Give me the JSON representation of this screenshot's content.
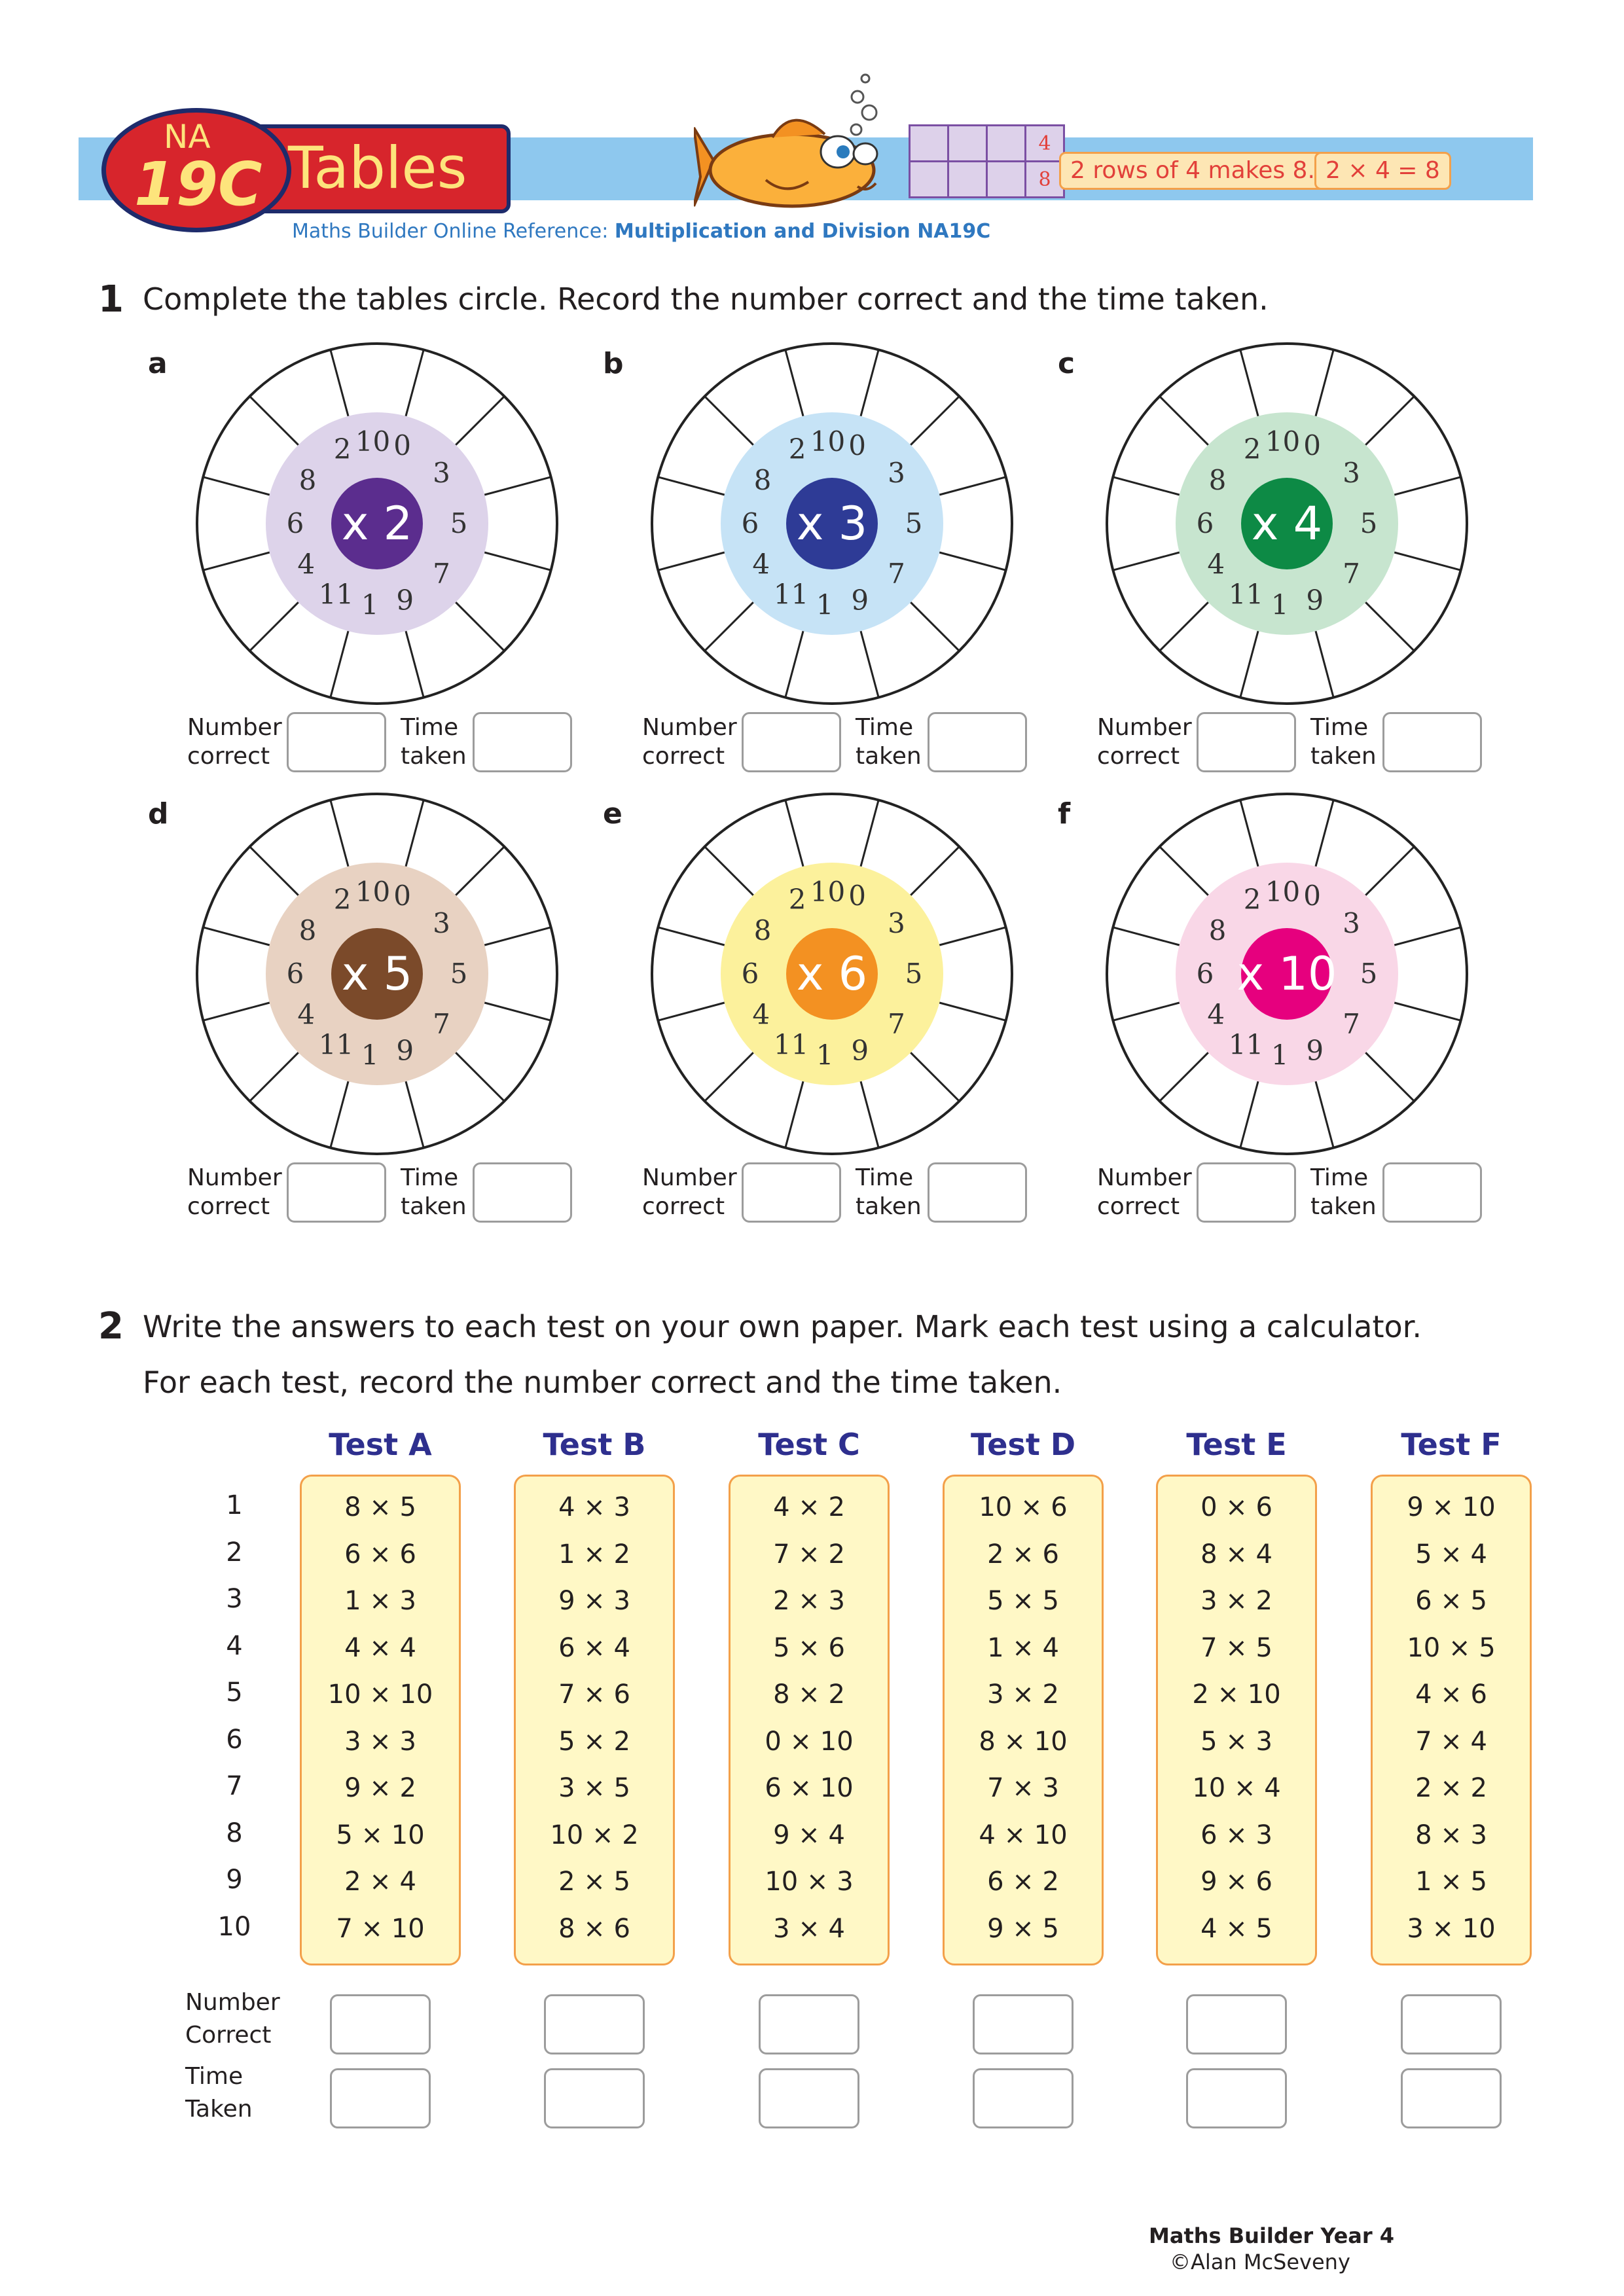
{
  "header": {
    "badge_na": "NA",
    "badge_code": "19C",
    "title": "Tables",
    "ref_prefix": "Maths Builder Online Reference: ",
    "ref_strong": "Multiplication and Division NA19C",
    "grid_digits": [
      "4",
      "8"
    ],
    "pill_rows": "2 rows of 4 makes 8.",
    "pill_eq": "2 × 4 =  8"
  },
  "q1": {
    "number": "1",
    "text": "Complete the tables circle. Record the number correct and the time taken.",
    "number_label": [
      "Number",
      "correct"
    ],
    "time_label": [
      "Time",
      "taken"
    ],
    "circle_digits": [
      "0",
      "3",
      "5",
      "7",
      "9",
      "1",
      "11",
      "4",
      "6",
      "8",
      "2",
      "10"
    ],
    "circles": [
      {
        "letter": "a",
        "label": "x 2",
        "ring": "#ddd3ea",
        "center": "#5b2d8e"
      },
      {
        "letter": "b",
        "label": "x 3",
        "ring": "#c6e3f6",
        "center": "#2e3b96"
      },
      {
        "letter": "c",
        "label": "x 4",
        "ring": "#c7e5cf",
        "center": "#0d8a45"
      },
      {
        "letter": "d",
        "label": "x 5",
        "ring": "#e8d2c2",
        "center": "#7b4a2a"
      },
      {
        "letter": "e",
        "label": "x 6",
        "ring": "#fcf19c",
        "center": "#f39122"
      },
      {
        "letter": "f",
        "label": "x 10",
        "ring": "#f9d7e7",
        "center": "#e6007e"
      }
    ]
  },
  "q2": {
    "number": "2",
    "text_line1": "Write the answers to each test on your own paper. Mark each test using a calculator.",
    "text_line2": "For each test, record the number correct and the time taken.",
    "row_numbers": [
      "1",
      "2",
      "3",
      "4",
      "5",
      "6",
      "7",
      "8",
      "9",
      "10"
    ],
    "tests": [
      {
        "name": "Test A",
        "items": [
          "8 × 5",
          "6 × 6",
          "1 × 3",
          "4 × 4",
          "10 × 10",
          "3 × 3",
          "9 × 2",
          "5 × 10",
          "2 × 4",
          "7 × 10"
        ]
      },
      {
        "name": "Test B",
        "items": [
          "4 × 3",
          "1 × 2",
          "9 × 3",
          "6 × 4",
          "7 × 6",
          "5 × 2",
          "3 × 5",
          "10 × 2",
          "2 × 5",
          "8 × 6"
        ]
      },
      {
        "name": "Test C",
        "items": [
          "4 × 2",
          "7 × 2",
          "2 × 3",
          "5 × 6",
          "8 × 2",
          "0 × 10",
          "6 × 10",
          "9 × 4",
          "10 × 3",
          "3 × 4"
        ]
      },
      {
        "name": "Test D",
        "items": [
          "10 × 6",
          "2 × 6",
          "5 × 5",
          "1 × 4",
          "3 × 2",
          "8 × 10",
          "7 × 3",
          "4 × 10",
          "6 × 2",
          "9 × 5"
        ]
      },
      {
        "name": "Test E",
        "items": [
          "0 × 6",
          "8 × 4",
          "3 × 2",
          "7 × 5",
          "2 × 10",
          "5 × 3",
          "10 × 4",
          "6 × 3",
          "9 × 6",
          "4 × 5"
        ]
      },
      {
        "name": "Test F",
        "items": [
          "9 × 10",
          "5 × 4",
          "6 × 5",
          "10 × 5",
          "4 × 6",
          "7 × 4",
          "2 × 2",
          "8 × 3",
          "1 × 5",
          "3 × 10"
        ]
      }
    ],
    "number_label": [
      "Number",
      "Correct"
    ],
    "time_label": [
      "Time",
      "Taken"
    ]
  },
  "footer": {
    "book": "Maths Builder Year 4",
    "copyright": "©Alan McSeveny"
  }
}
